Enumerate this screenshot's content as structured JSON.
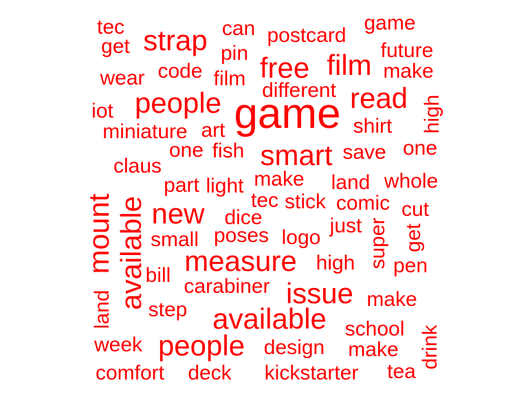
{
  "accent_color": "#ff0000",
  "words": [
    {
      "text": "tec"
    },
    {
      "text": "get"
    },
    {
      "text": "strap"
    },
    {
      "text": "can"
    },
    {
      "text": "pin"
    },
    {
      "text": "postcard"
    },
    {
      "text": "game"
    },
    {
      "text": "future"
    },
    {
      "text": "wear"
    },
    {
      "text": "code"
    },
    {
      "text": "film"
    },
    {
      "text": "free"
    },
    {
      "text": "film"
    },
    {
      "text": "make"
    },
    {
      "text": "different"
    },
    {
      "text": "people"
    },
    {
      "text": "read"
    },
    {
      "text": "game"
    },
    {
      "text": "iot"
    },
    {
      "text": "miniature"
    },
    {
      "text": "art"
    },
    {
      "text": "shirt"
    },
    {
      "text": "high"
    },
    {
      "text": "one"
    },
    {
      "text": "fish"
    },
    {
      "text": "smart"
    },
    {
      "text": "save"
    },
    {
      "text": "one"
    },
    {
      "text": "claus"
    },
    {
      "text": "part"
    },
    {
      "text": "light"
    },
    {
      "text": "make"
    },
    {
      "text": "land"
    },
    {
      "text": "whole"
    },
    {
      "text": "tec"
    },
    {
      "text": "stick"
    },
    {
      "text": "comic"
    },
    {
      "text": "cut"
    },
    {
      "text": "mount"
    },
    {
      "text": "available"
    },
    {
      "text": "new"
    },
    {
      "text": "dice"
    },
    {
      "text": "just"
    },
    {
      "text": "super"
    },
    {
      "text": "get"
    },
    {
      "text": "small"
    },
    {
      "text": "poses"
    },
    {
      "text": "logo"
    },
    {
      "text": "measure"
    },
    {
      "text": "high"
    },
    {
      "text": "pen"
    },
    {
      "text": "bill"
    },
    {
      "text": "carabiner"
    },
    {
      "text": "issue"
    },
    {
      "text": "land"
    },
    {
      "text": "step"
    },
    {
      "text": "make"
    },
    {
      "text": "available"
    },
    {
      "text": "school"
    },
    {
      "text": "week"
    },
    {
      "text": "people"
    },
    {
      "text": "design"
    },
    {
      "text": "make"
    },
    {
      "text": "drink"
    },
    {
      "text": "comfort"
    },
    {
      "text": "deck"
    },
    {
      "text": "kickstarter"
    },
    {
      "text": "tea"
    }
  ]
}
